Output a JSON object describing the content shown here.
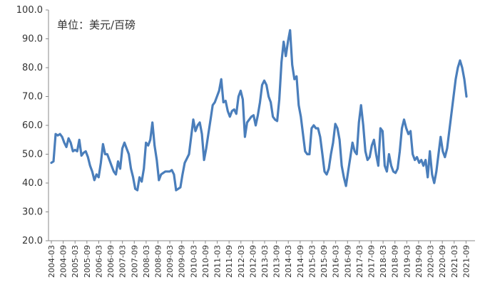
{
  "unit_label": "单位：美元/百磅",
  "colors": {
    "line": "#4a7ebb",
    "axis": "#888888"
  },
  "chart_data": {
    "type": "line",
    "title": "",
    "xlabel": "",
    "ylabel": "",
    "ylim": [
      20,
      100
    ],
    "yticks": [
      "20.0",
      "30.0",
      "40.0",
      "50.0",
      "60.0",
      "70.0",
      "80.0",
      "90.0",
      "100.0"
    ],
    "xticks": [
      "2004-03",
      "2004-09",
      "2005-03",
      "2005-09",
      "2006-03",
      "2006-09",
      "2007-03",
      "2007-09",
      "2008-03",
      "2008-09",
      "2009-03",
      "2009-09",
      "2010-03",
      "2010-09",
      "2011-03",
      "2011-09",
      "2012-03",
      "2012-09",
      "2013-03",
      "2013-09",
      "2014-03",
      "2014-09",
      "2015-03",
      "2015-09",
      "2016-03",
      "2016-09",
      "2017-03",
      "2017-09",
      "2018-03",
      "2018-09",
      "2019-03",
      "2019-09",
      "2020-03",
      "2020-09",
      "2021-03",
      "2021-09"
    ],
    "grid": false,
    "series": [
      {
        "values": [
          47,
          47.5,
          57,
          56.5,
          57,
          56,
          54,
          52.5,
          55.5,
          54,
          51,
          51.5,
          51,
          55,
          49.5,
          50.5,
          51,
          49,
          46,
          44,
          41,
          43,
          42,
          47,
          53.5,
          50,
          50,
          48,
          46,
          44,
          43,
          47.5,
          45,
          52,
          54,
          52,
          50,
          45,
          42,
          38,
          37.5,
          42,
          40.5,
          45,
          54,
          53,
          55,
          61,
          53,
          48,
          41,
          43,
          43.5,
          44,
          44,
          44,
          44.5,
          43,
          37.5,
          38,
          38.5,
          43,
          47,
          48.5,
          50,
          56,
          62,
          58,
          60,
          61,
          57,
          48,
          52,
          57,
          62,
          67,
          68,
          70,
          72,
          76,
          68,
          68.5,
          65,
          63,
          65,
          65.5,
          64,
          70,
          72,
          69,
          56,
          61,
          62,
          63,
          63.5,
          60,
          63.5,
          68,
          74,
          75.5,
          74,
          70,
          68,
          63,
          62,
          61.5,
          69,
          82,
          89,
          84,
          89,
          93,
          81,
          76,
          77,
          67,
          63,
          57,
          51,
          50,
          50,
          59,
          60,
          59,
          59,
          56,
          50,
          44,
          43,
          45,
          50,
          54,
          60.5,
          59,
          55,
          46,
          42,
          39,
          44,
          49,
          54,
          51,
          50,
          61,
          67,
          60,
          51,
          48,
          49,
          53,
          55,
          50,
          46,
          59,
          58,
          46,
          44,
          50,
          46,
          44,
          43.5,
          45,
          51,
          59,
          62,
          59,
          57,
          58,
          50,
          48,
          49,
          47,
          48,
          46,
          48,
          42,
          51,
          43,
          40,
          44,
          50,
          56,
          51,
          49,
          52,
          58,
          64,
          70,
          76,
          80,
          82.5,
          80,
          76,
          70
        ]
      }
    ]
  }
}
